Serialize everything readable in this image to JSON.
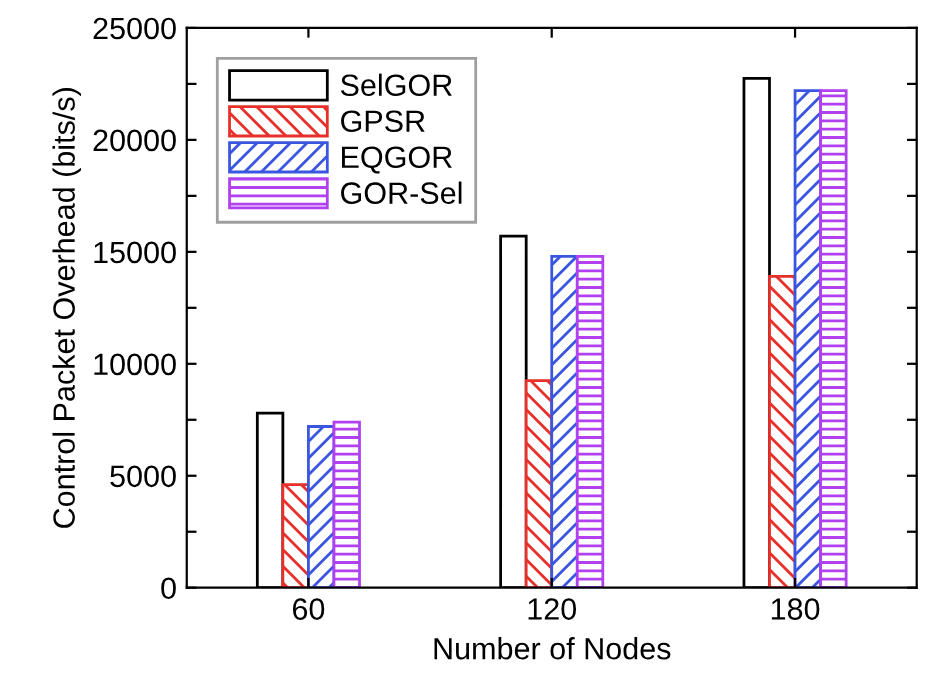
{
  "chart_data": {
    "type": "bar",
    "xlabel": "Number of Nodes",
    "ylabel": "Control Packet Overhead (bits/s)",
    "categories": [
      "60",
      "120",
      "180"
    ],
    "series": [
      {
        "name": "SelGOR",
        "color": "#000000",
        "values": [
          7800,
          15700,
          22750
        ]
      },
      {
        "name": "GPSR",
        "color": "#e8302a",
        "values": [
          4600,
          9250,
          13900
        ]
      },
      {
        "name": "EQGOR",
        "color": "#3a56e0",
        "values": [
          7200,
          14800,
          22200
        ]
      },
      {
        "name": "GOR-Sel",
        "color": "#b040f0",
        "values": [
          7400,
          14800,
          22200
        ]
      }
    ],
    "ylim": [
      0,
      25000
    ],
    "yticks": [
      0,
      {
        "value": 2500,
        "label": null
      },
      5000,
      {
        "value": 7500,
        "label": null
      },
      10000,
      {
        "value": 12500,
        "label": null
      },
      15000,
      {
        "value": 17500,
        "label": null
      },
      20000,
      {
        "value": 22500,
        "label": null
      },
      25000
    ],
    "legend": "top left",
    "grid": false
  }
}
